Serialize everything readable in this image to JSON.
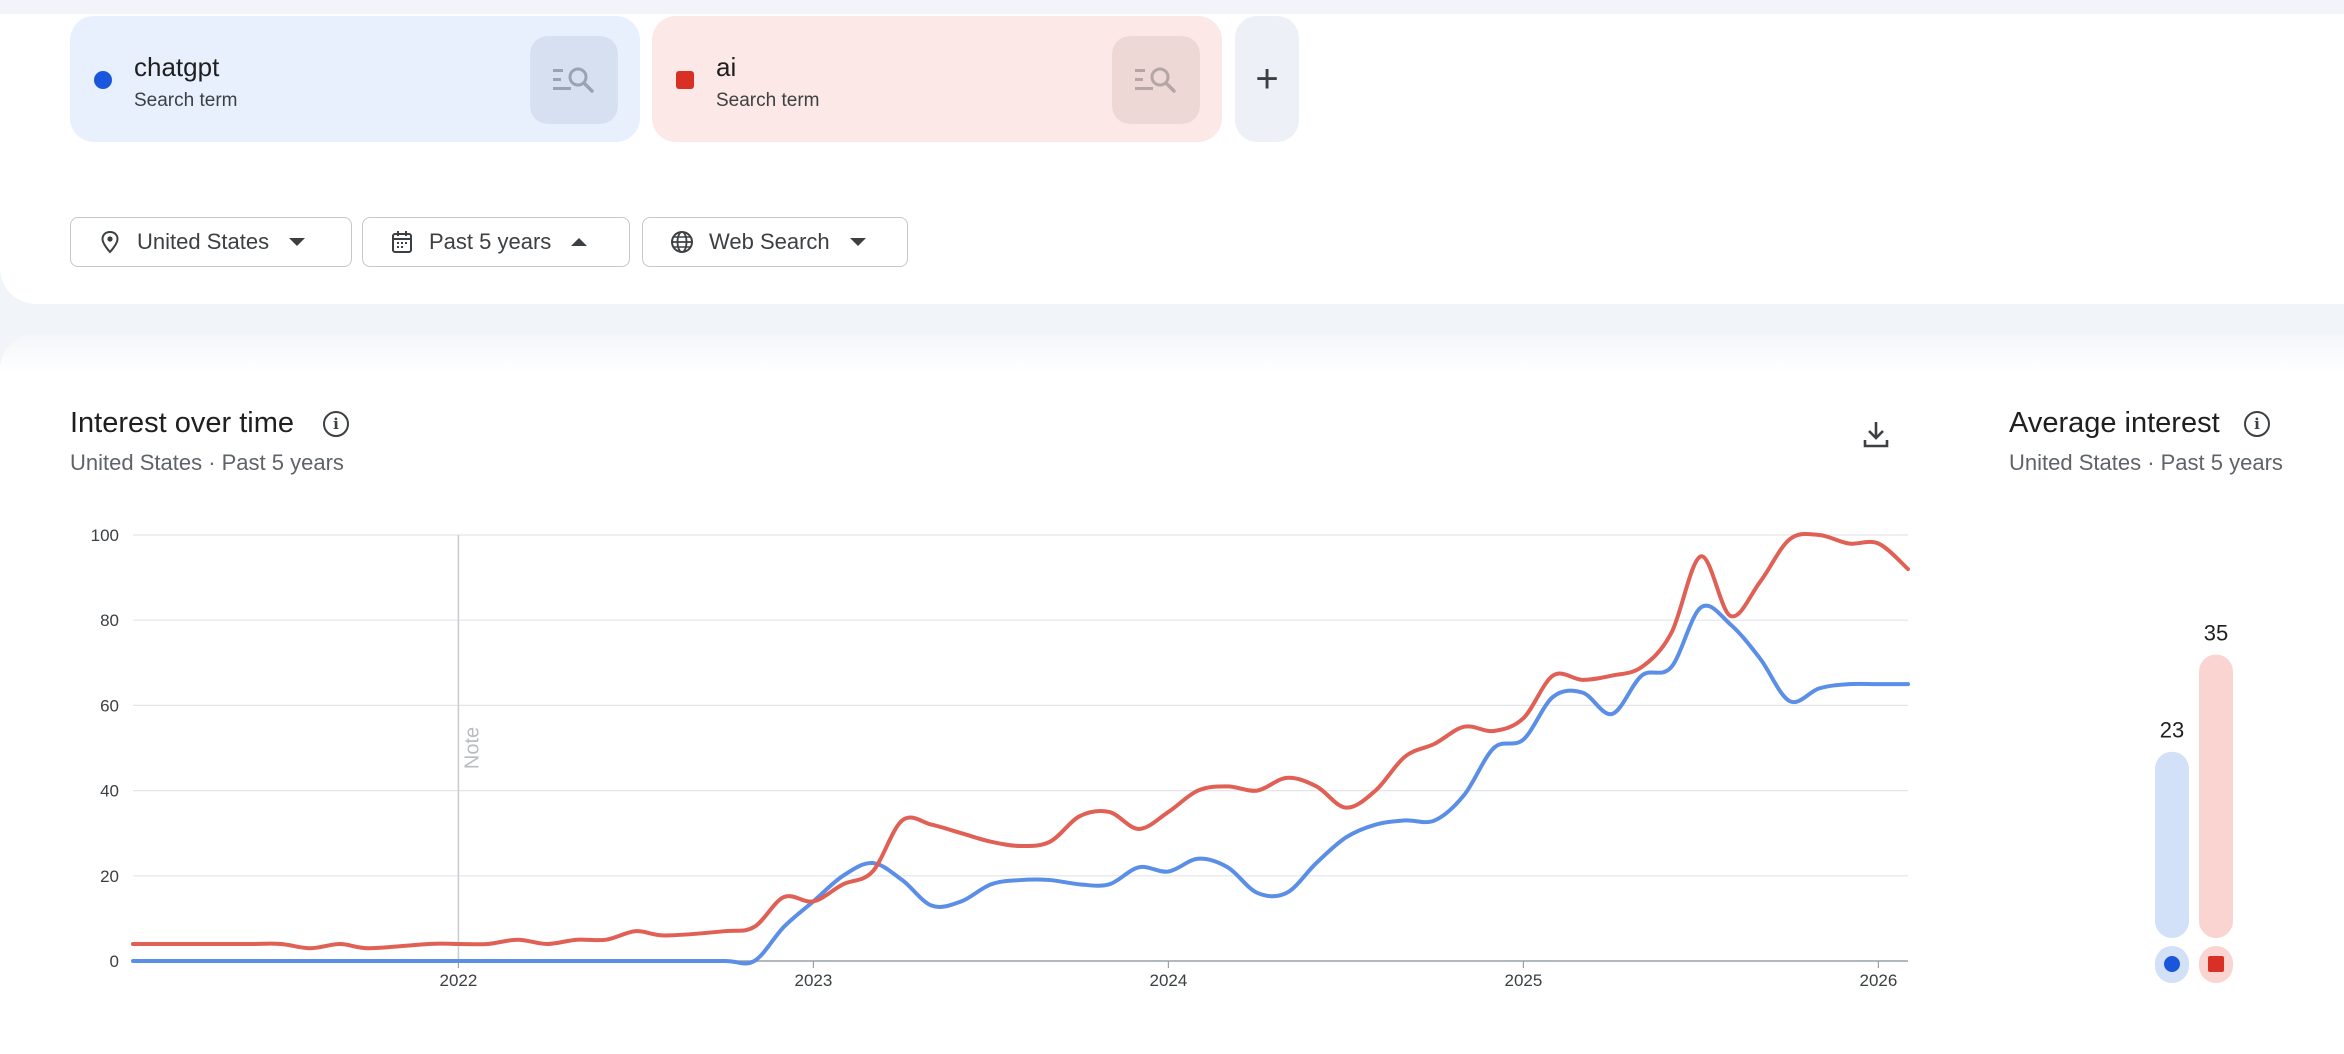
{
  "terms": [
    {
      "name": "chatgpt",
      "type": "Search term",
      "color": "#1a56db",
      "marker": "circle"
    },
    {
      "name": "ai",
      "type": "Search term",
      "color": "#d93025",
      "marker": "square"
    }
  ],
  "add_term_label": "+",
  "filters": {
    "region": "United States",
    "period": "Past 5 years",
    "property": "Web Search"
  },
  "interest_over_time": {
    "title": "Interest over time",
    "subtitle": "United States · Past 5 years",
    "note_label": "Note"
  },
  "average_interest": {
    "title": "Average interest",
    "subtitle": "United States · Past 5 years",
    "values": [
      23,
      35
    ]
  },
  "chart_data": {
    "type": "line",
    "x_ticks": [
      "2022",
      "2023",
      "2024",
      "2025",
      "2026"
    ],
    "y_ticks": [
      0,
      20,
      40,
      60,
      80,
      100
    ],
    "ylim": [
      0,
      100
    ],
    "xlim": [
      "2021-02",
      "2026-02"
    ],
    "grid": true,
    "colors": {
      "chatgpt": "#5b8ee6",
      "ai": "#e06055"
    },
    "x": [
      "2021-02",
      "2021-04",
      "2021-06",
      "2021-07",
      "2021-08",
      "2021-09",
      "2021-10",
      "2021-12",
      "2022-01",
      "2022-02",
      "2022-03",
      "2022-04",
      "2022-05",
      "2022-06",
      "2022-07",
      "2022-08",
      "2022-10",
      "2022-11",
      "2022-12",
      "2023-01",
      "2023-02",
      "2023-03",
      "2023-04",
      "2023-05",
      "2023-06",
      "2023-07",
      "2023-08",
      "2023-09",
      "2023-10",
      "2023-11",
      "2023-12",
      "2024-01",
      "2024-02",
      "2024-03",
      "2024-04",
      "2024-05",
      "2024-06",
      "2024-07",
      "2024-08",
      "2024-09",
      "2024-10",
      "2024-11",
      "2024-12",
      "2025-01",
      "2025-02",
      "2025-03",
      "2025-04",
      "2025-05",
      "2025-06",
      "2025-07",
      "2025-08",
      "2025-09",
      "2025-10",
      "2025-11",
      "2025-12",
      "2026-01",
      "2026-02"
    ],
    "series": [
      {
        "name": "chatgpt",
        "values": [
          0,
          0,
          0,
          0,
          0,
          0,
          0,
          0,
          0,
          0,
          0,
          0,
          0,
          0,
          0,
          0,
          0,
          0,
          8,
          14,
          20,
          23,
          19,
          13,
          14,
          18,
          19,
          19,
          18,
          18,
          22,
          21,
          24,
          22,
          16,
          16,
          23,
          29,
          32,
          33,
          33,
          39,
          50,
          52,
          62,
          63,
          58,
          67,
          69,
          83,
          79,
          71,
          61,
          64,
          65,
          65,
          65
        ]
      },
      {
        "name": "ai",
        "values": [
          4,
          4,
          4,
          4,
          3,
          4,
          3,
          4,
          4,
          4,
          5,
          4,
          5,
          5,
          7,
          6,
          7,
          8,
          15,
          14,
          18,
          21,
          33,
          32,
          30,
          28,
          27,
          28,
          34,
          35,
          31,
          35,
          40,
          41,
          40,
          43,
          41,
          36,
          40,
          48,
          51,
          55,
          54,
          57,
          67,
          66,
          67,
          69,
          77,
          95,
          81,
          89,
          99,
          100,
          98,
          98,
          92
        ]
      }
    ]
  }
}
